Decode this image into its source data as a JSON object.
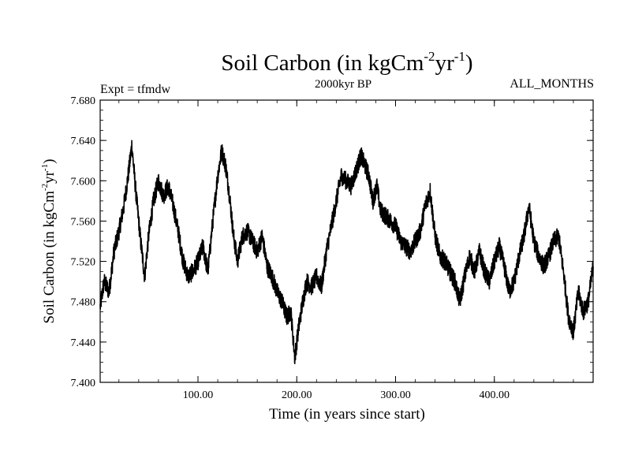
{
  "chart_data": {
    "type": "line",
    "title": "Soil Carbon (in kgCm",
    "title_sup1": "-2",
    "title_mid": "yr",
    "title_sup2": "-1",
    "title_end": ")",
    "subtitle_left": "Expt = tfmdw",
    "subtitle_center": "2000kyr BP",
    "subtitle_right": "ALL_MONTHS",
    "xlabel": "Time (in years since start)",
    "ylabel": "Soil Carbon (in kgCm",
    "ylabel_sup1": "-2",
    "ylabel_mid": "yr",
    "ylabel_sup2": "-1",
    "ylabel_end": ")",
    "xlim": [
      1,
      500
    ],
    "ylim": [
      7.4,
      7.68
    ],
    "x_ticks": [
      100,
      200,
      300,
      400
    ],
    "x_tick_labels": [
      "100.00",
      "200.00",
      "300.00",
      "400.00"
    ],
    "y_ticks": [
      7.4,
      7.44,
      7.48,
      7.52,
      7.56,
      7.6,
      7.64,
      7.68
    ],
    "y_tick_labels": [
      "7.400",
      "7.440",
      "7.480",
      "7.520",
      "7.560",
      "7.600",
      "7.640",
      "7.680"
    ],
    "series": [
      {
        "name": "Soil Carbon",
        "color": "#000000",
        "x": [
          1,
          5,
          10,
          15,
          20,
          25,
          30,
          33,
          37,
          42,
          46,
          50,
          55,
          60,
          65,
          70,
          75,
          80,
          85,
          90,
          95,
          100,
          105,
          110,
          115,
          120,
          124,
          128,
          132,
          136,
          140,
          145,
          150,
          155,
          160,
          165,
          170,
          175,
          180,
          185,
          190,
          194,
          198,
          202,
          206,
          210,
          215,
          220,
          225,
          230,
          235,
          240,
          245,
          250,
          255,
          260,
          265,
          269,
          273,
          277,
          281,
          285,
          290,
          295,
          300,
          305,
          310,
          315,
          320,
          325,
          330,
          335,
          340,
          345,
          350,
          355,
          360,
          365,
          370,
          375,
          380,
          385,
          390,
          395,
          400,
          405,
          410,
          415,
          420,
          425,
          430,
          435,
          440,
          445,
          450,
          455,
          460,
          465,
          470,
          475,
          480,
          485,
          490,
          495,
          500
        ],
        "y": [
          7.475,
          7.5,
          7.49,
          7.53,
          7.55,
          7.575,
          7.61,
          7.635,
          7.59,
          7.54,
          7.505,
          7.545,
          7.58,
          7.6,
          7.585,
          7.595,
          7.575,
          7.55,
          7.52,
          7.505,
          7.51,
          7.52,
          7.535,
          7.51,
          7.56,
          7.605,
          7.63,
          7.615,
          7.585,
          7.545,
          7.52,
          7.545,
          7.55,
          7.54,
          7.53,
          7.545,
          7.515,
          7.505,
          7.49,
          7.48,
          7.465,
          7.47,
          7.425,
          7.455,
          7.48,
          7.5,
          7.495,
          7.505,
          7.495,
          7.53,
          7.555,
          7.58,
          7.605,
          7.6,
          7.595,
          7.61,
          7.625,
          7.615,
          7.605,
          7.58,
          7.595,
          7.57,
          7.565,
          7.56,
          7.555,
          7.54,
          7.535,
          7.53,
          7.54,
          7.55,
          7.575,
          7.59,
          7.545,
          7.525,
          7.52,
          7.51,
          7.5,
          7.48,
          7.505,
          7.525,
          7.51,
          7.53,
          7.51,
          7.5,
          7.52,
          7.535,
          7.515,
          7.49,
          7.5,
          7.525,
          7.545,
          7.575,
          7.54,
          7.525,
          7.515,
          7.525,
          7.54,
          7.545,
          7.51,
          7.465,
          7.45,
          7.49,
          7.47,
          7.48,
          7.515
        ]
      }
    ]
  }
}
